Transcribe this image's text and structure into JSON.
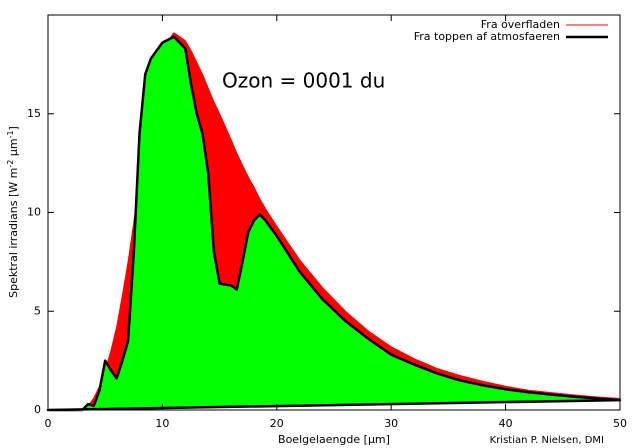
{
  "chart_data": {
    "type": "area",
    "annotation": "Ozon = 0001 du",
    "credit": "Kristian P. Nielsen, DMI",
    "xlabel": "Boelgelaengde [µm]",
    "ylabel": [
      "Spektral irradians [W m",
      "-2",
      " µm",
      "-1",
      "]"
    ],
    "x": [
      0,
      3,
      3.5,
      4,
      4.5,
      5,
      5.5,
      6,
      6.5,
      7,
      7.5,
      8,
      8.5,
      9,
      10,
      11,
      12,
      12.5,
      13,
      13.5,
      14,
      14.5,
      15,
      16,
      16.5,
      17,
      17.5,
      18,
      18.5,
      19,
      20,
      22,
      24,
      26,
      28,
      30,
      32,
      34,
      36,
      38,
      40,
      42,
      44,
      46,
      48,
      50
    ],
    "series": [
      {
        "name": "Fra overfladen",
        "color": "#ff0000",
        "fill": "#ff0000",
        "values": [
          0,
          0,
          0.2,
          0.6,
          1.2,
          2.0,
          3.0,
          4.2,
          5.8,
          7.5,
          9.5,
          11.8,
          14,
          16,
          18.3,
          19.1,
          18.7,
          18.2,
          17.6,
          17,
          16.3,
          15.6,
          15,
          13.7,
          13,
          12.4,
          11.8,
          11.3,
          10.7,
          10.2,
          9.3,
          7.6,
          6.2,
          5.0,
          4.0,
          3.2,
          2.6,
          2.1,
          1.75,
          1.45,
          1.2,
          1.0,
          0.88,
          0.76,
          0.66,
          0.58
        ]
      },
      {
        "name": "Fra toppen af atmosfaeren",
        "color": "#000000",
        "fill": "#00ff00",
        "values": [
          0,
          0,
          0.3,
          0.2,
          1.0,
          2.5,
          2.0,
          1.6,
          2.5,
          3.5,
          8,
          14,
          17,
          17.8,
          18.6,
          18.9,
          18.3,
          16.5,
          15,
          14,
          12,
          8,
          6.4,
          6.3,
          6.1,
          7.5,
          9,
          9.6,
          9.9,
          9.6,
          8.8,
          7.0,
          5.6,
          4.5,
          3.6,
          2.8,
          2.3,
          1.85,
          1.5,
          1.25,
          1.05,
          0.9,
          0.78,
          0.67,
          0.58,
          0.5
        ]
      }
    ],
    "xlim": [
      0,
      50
    ],
    "xticks": [
      0,
      10,
      20,
      30,
      40,
      50
    ],
    "ylim": [
      0,
      20
    ],
    "yticks": [
      0,
      5,
      10,
      15
    ],
    "legend": "top-right"
  }
}
